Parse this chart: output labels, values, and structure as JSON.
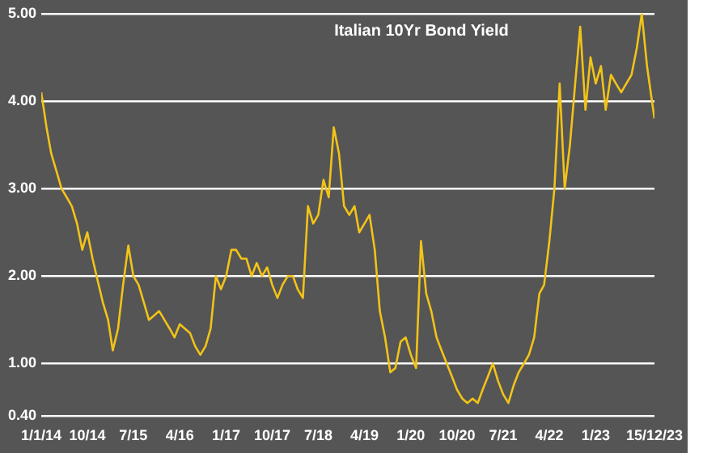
{
  "chart_data": {
    "type": "line",
    "title": "Italian 10Yr Bond Yield",
    "x": [
      "2014-01",
      "2014-02",
      "2014-03",
      "2014-04",
      "2014-05",
      "2014-06",
      "2014-07",
      "2014-08",
      "2014-09",
      "2014-10",
      "2014-11",
      "2014-12",
      "2015-01",
      "2015-02",
      "2015-03",
      "2015-04",
      "2015-05",
      "2015-06",
      "2015-07",
      "2015-08",
      "2015-09",
      "2015-10",
      "2015-11",
      "2015-12",
      "2016-01",
      "2016-02",
      "2016-03",
      "2016-04",
      "2016-05",
      "2016-06",
      "2016-07",
      "2016-08",
      "2016-09",
      "2016-10",
      "2016-11",
      "2016-12",
      "2017-01",
      "2017-02",
      "2017-03",
      "2017-04",
      "2017-05",
      "2017-06",
      "2017-07",
      "2017-08",
      "2017-09",
      "2017-10",
      "2017-11",
      "2017-12",
      "2018-01",
      "2018-02",
      "2018-03",
      "2018-04",
      "2018-05",
      "2018-06",
      "2018-07",
      "2018-08",
      "2018-09",
      "2018-10",
      "2018-11",
      "2018-12",
      "2019-01",
      "2019-02",
      "2019-03",
      "2019-04",
      "2019-05",
      "2019-06",
      "2019-07",
      "2019-08",
      "2019-09",
      "2019-10",
      "2019-11",
      "2019-12",
      "2020-01",
      "2020-02",
      "2020-03",
      "2020-04",
      "2020-05",
      "2020-06",
      "2020-07",
      "2020-08",
      "2020-09",
      "2020-10",
      "2020-11",
      "2020-12",
      "2021-01",
      "2021-02",
      "2021-03",
      "2021-04",
      "2021-05",
      "2021-06",
      "2021-07",
      "2021-08",
      "2021-09",
      "2021-10",
      "2021-11",
      "2021-12",
      "2022-01",
      "2022-02",
      "2022-03",
      "2022-04",
      "2022-05",
      "2022-06",
      "2022-07",
      "2022-08",
      "2022-09",
      "2022-10",
      "2022-11",
      "2022-12",
      "2023-01",
      "2023-02",
      "2023-03",
      "2023-04",
      "2023-05",
      "2023-06",
      "2023-07",
      "2023-08",
      "2023-09",
      "2023-10",
      "2023-11",
      "2023-12-15"
    ],
    "series": [
      {
        "color": "#f2c318",
        "values": [
          4.1,
          3.7,
          3.4,
          3.2,
          3.0,
          2.9,
          2.8,
          2.6,
          2.3,
          2.5,
          2.2,
          1.95,
          1.7,
          1.5,
          1.15,
          1.4,
          1.9,
          2.35,
          2.0,
          1.9,
          1.7,
          1.5,
          1.55,
          1.6,
          1.5,
          1.4,
          1.3,
          1.45,
          1.4,
          1.35,
          1.2,
          1.1,
          1.2,
          1.4,
          2.0,
          1.85,
          2.0,
          2.3,
          2.3,
          2.2,
          2.2,
          2.0,
          2.15,
          2.0,
          2.1,
          1.9,
          1.75,
          1.9,
          2.0,
          2.0,
          1.85,
          1.75,
          2.8,
          2.6,
          2.7,
          3.1,
          2.9,
          3.7,
          3.4,
          2.8,
          2.7,
          2.8,
          2.5,
          2.6,
          2.7,
          2.3,
          1.6,
          1.3,
          0.9,
          0.95,
          1.25,
          1.3,
          1.1,
          0.95,
          2.4,
          1.8,
          1.6,
          1.3,
          1.15,
          1.0,
          0.85,
          0.7,
          0.6,
          0.55,
          0.6,
          0.55,
          0.7,
          0.85,
          1.0,
          0.8,
          0.65,
          0.55,
          0.75,
          0.9,
          1.0,
          1.1,
          1.3,
          1.8,
          1.9,
          2.4,
          3.0,
          4.2,
          3.0,
          3.5,
          4.2,
          4.85,
          3.9,
          4.5,
          4.2,
          4.4,
          3.9,
          4.3,
          4.2,
          4.1,
          4.2,
          4.3,
          4.6,
          5.0,
          4.4,
          3.8
        ]
      }
    ],
    "xlim": [
      "2014-01-01",
      "2023-12-15"
    ],
    "xticks": [
      {
        "value": "2014-01-01",
        "label": "1/1/14"
      },
      {
        "value": "2014-10-01",
        "label": "10/14"
      },
      {
        "value": "2015-07-01",
        "label": "7/15"
      },
      {
        "value": "2016-04-01",
        "label": "4/16"
      },
      {
        "value": "2017-01-01",
        "label": "1/17"
      },
      {
        "value": "2017-10-01",
        "label": "10/17"
      },
      {
        "value": "2018-07-01",
        "label": "7/18"
      },
      {
        "value": "2019-04-01",
        "label": "4/19"
      },
      {
        "value": "2020-01-01",
        "label": "1/20"
      },
      {
        "value": "2020-10-01",
        "label": "10/20"
      },
      {
        "value": "2021-07-01",
        "label": "7/21"
      },
      {
        "value": "2022-04-01",
        "label": "4/22"
      },
      {
        "value": "2023-01-01",
        "label": "1/23"
      },
      {
        "value": "2023-12-15",
        "label": "15/12/23"
      }
    ],
    "ylim": [
      0.4,
      5.0
    ],
    "yticks": [
      {
        "value": 0.4,
        "label": "0.40"
      },
      {
        "value": 1,
        "label": "1.00"
      },
      {
        "value": 2,
        "label": "2.00"
      },
      {
        "value": 3,
        "label": "3.00"
      },
      {
        "value": 4,
        "label": "4.00"
      },
      {
        "value": 5,
        "label": "5.00"
      }
    ],
    "grid": "y",
    "legend": false,
    "marker": "none",
    "line_style": "solid"
  }
}
